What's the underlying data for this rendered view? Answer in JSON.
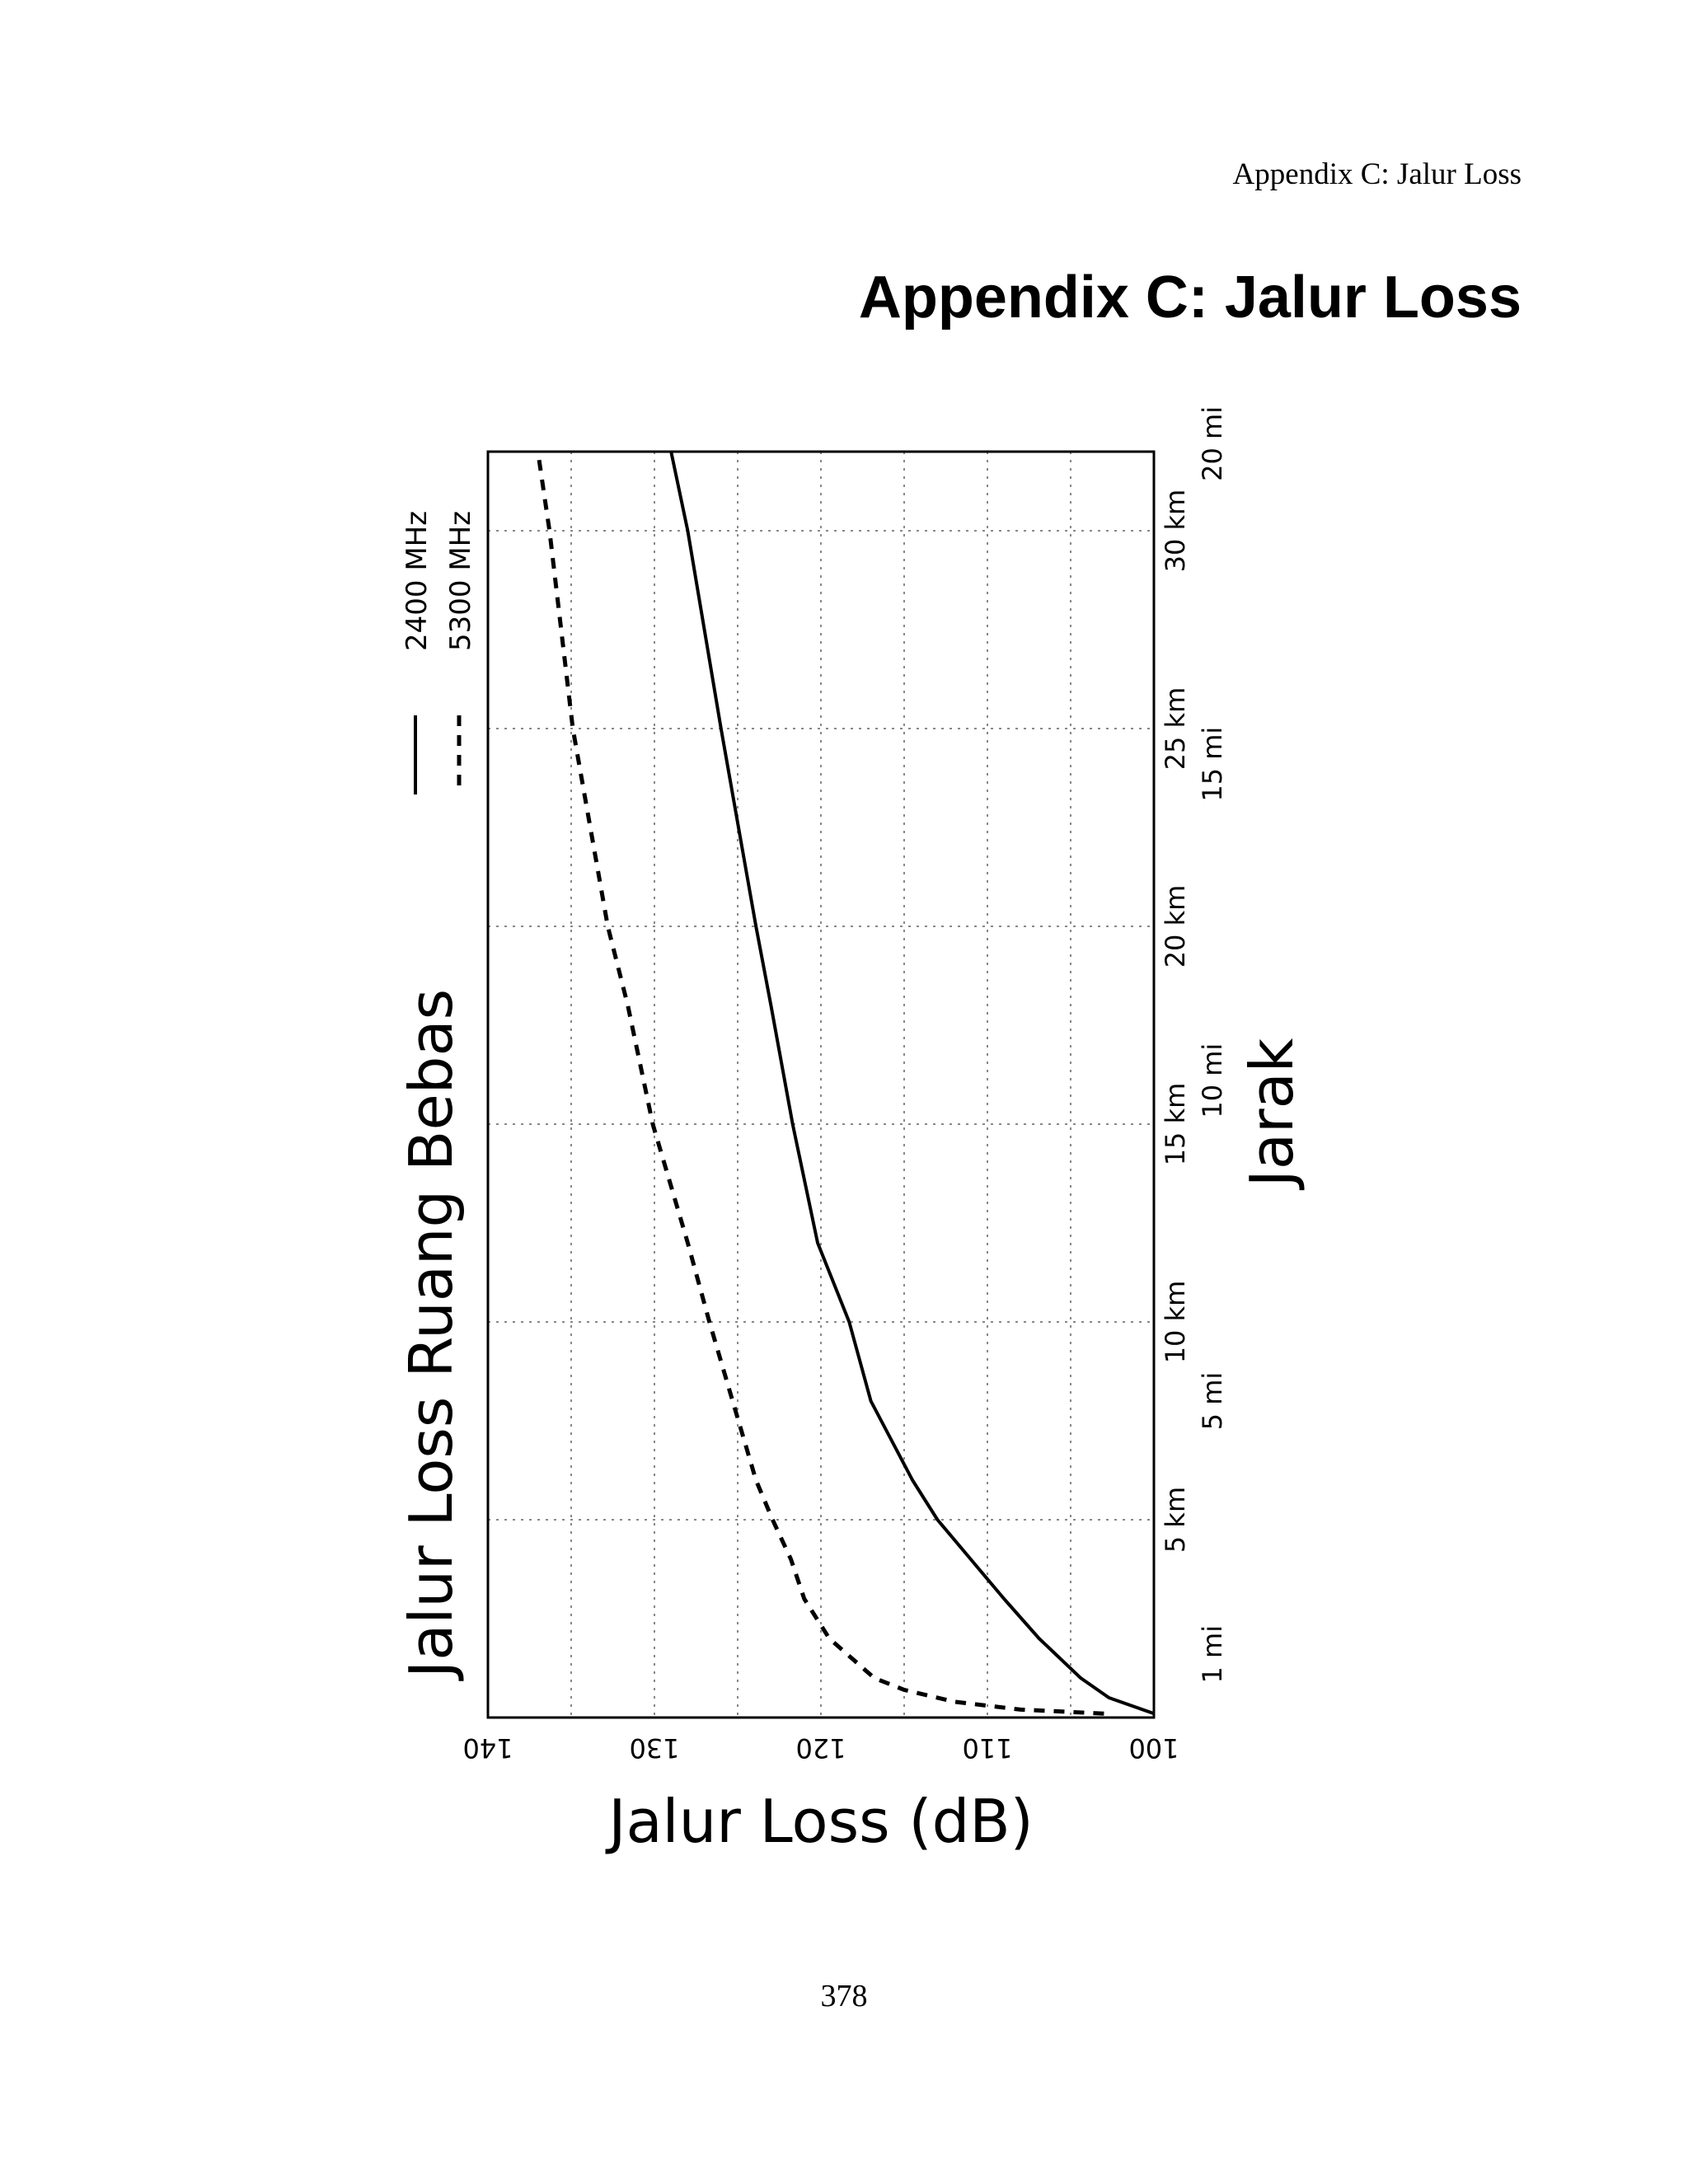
{
  "document": {
    "running_header": "Appendix C: Jalur Loss",
    "heading": "Appendix C: Jalur Loss",
    "page_number": "378"
  },
  "chart_data": {
    "type": "line",
    "orientation": "rotated-90",
    "title": "Jalur Loss Ruang Bebas",
    "xlabel": "Jarak",
    "ylabel": "Jalur Loss (dB)",
    "xlim_km": [
      0,
      32
    ],
    "ylim_db": [
      100,
      140
    ],
    "grid": true,
    "legend_placement": "top-right",
    "x_ticks": [
      {
        "km": 1.6,
        "label": "1 mi"
      },
      {
        "km": 5,
        "label": "5 km"
      },
      {
        "km": 8,
        "label": "5 mi"
      },
      {
        "km": 10,
        "label": "10 km"
      },
      {
        "km": 15,
        "label": "15 km"
      },
      {
        "km": 16.1,
        "label": "10 mi"
      },
      {
        "km": 20,
        "label": "20 km"
      },
      {
        "km": 24.1,
        "label": "15 mi"
      },
      {
        "km": 25,
        "label": "25 km"
      },
      {
        "km": 30,
        "label": "30 km"
      },
      {
        "km": 32.2,
        "label": "20 mi"
      }
    ],
    "x_grid_km": [
      5,
      10,
      15,
      20,
      25,
      30
    ],
    "y_ticks": [
      100,
      110,
      120,
      130,
      140
    ],
    "y_grid_db": [
      105,
      110,
      115,
      120,
      125,
      130,
      135
    ],
    "series": [
      {
        "name": "2400 MHz",
        "style": "solid",
        "x_km": [
          0.1,
          0.5,
          1,
          2,
          3,
          4,
          5,
          6,
          8,
          10,
          12,
          15,
          18,
          20,
          25,
          30,
          32
        ],
        "y_db": [
          100,
          102.7,
          104.4,
          106.9,
          109.0,
          111.0,
          113.0,
          114.5,
          117.0,
          118.3,
          120.2,
          121.7,
          123.0,
          123.9,
          126.0,
          128.0,
          129.0
        ]
      },
      {
        "name": "5300 MHz",
        "style": "dashed",
        "x_km": [
          0.1,
          0.2,
          0.4,
          0.7,
          1,
          2,
          3,
          4,
          5,
          6,
          8,
          10,
          12,
          15,
          18,
          20,
          25,
          30,
          32
        ],
        "y_db": [
          103,
          108,
          112,
          115,
          116.8,
          119.5,
          121,
          121.8,
          122.9,
          123.9,
          125.3,
          126.7,
          128,
          130.1,
          131.6,
          132.8,
          134.9,
          136.3,
          137
        ]
      }
    ]
  }
}
